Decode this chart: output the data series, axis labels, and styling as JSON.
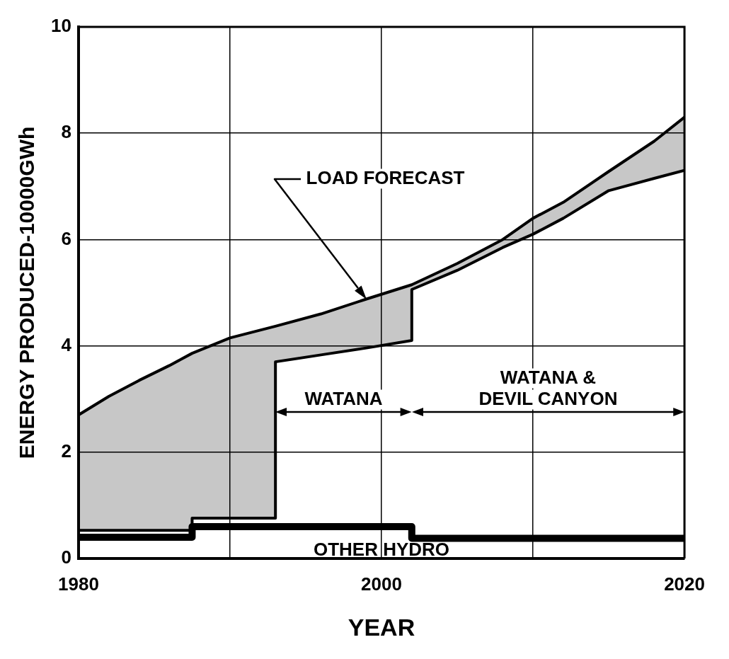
{
  "chart_data": {
    "type": "line",
    "xlabel": "YEAR",
    "ylabel": "ENERGY PRODUCED-10000GWh",
    "xlim": [
      1980,
      2020
    ],
    "xticks": [
      1980,
      {
        "value": 1990,
        "label": null
      },
      2000,
      {
        "value": 2010,
        "label": null
      },
      2020
    ],
    "ylim": [
      0,
      10
    ],
    "yticks": [
      0,
      2,
      4,
      6,
      8,
      10
    ],
    "grid": true,
    "legend": false,
    "marker": "none",
    "line_style": "solid",
    "series": [
      {
        "color": "#000000",
        "x": [
          1980,
          1982,
          1984,
          1986,
          1987.5,
          1987.5,
          1990,
          1993,
          1993,
          1996,
          1999,
          2002,
          2002,
          2005,
          2008,
          2010,
          2012,
          2015,
          2018,
          2020
        ],
        "values": [
          2.7,
          3.05,
          3.35,
          3.63,
          3.86,
          3.86,
          4.15,
          4.37,
          4.37,
          4.6,
          4.88,
          5.15,
          5.15,
          5.55,
          6.0,
          6.4,
          6.7,
          7.28,
          7.85,
          8.3
        ],
        "lower": [
          0.53,
          0.53,
          0.53,
          0.53,
          0.53,
          0.76,
          0.76,
          0.76,
          3.7,
          3.83,
          3.96,
          4.1,
          5.06,
          5.42,
          5.85,
          6.1,
          6.4,
          6.92,
          7.15,
          7.3
        ],
        "upper": [
          2.7,
          3.05,
          3.35,
          3.63,
          3.86,
          3.86,
          4.15,
          4.37,
          4.37,
          4.6,
          4.88,
          5.15,
          5.15,
          5.55,
          6.0,
          6.4,
          6.7,
          7.28,
          7.85,
          8.3
        ]
      },
      {
        "color": "#000000",
        "x": [
          1980,
          1982,
          1984,
          1986,
          1987.5,
          1987.5,
          1990,
          1993,
          1993,
          1996,
          1999,
          2002,
          2002,
          2005,
          2008,
          2010,
          2012,
          2015,
          2018,
          2020
        ],
        "values": [
          0.53,
          0.53,
          0.53,
          0.53,
          0.53,
          0.76,
          0.76,
          0.76,
          3.7,
          3.83,
          3.96,
          4.1,
          5.06,
          5.42,
          5.85,
          6.1,
          6.4,
          6.92,
          7.15,
          7.3
        ]
      },
      {
        "name": "OTHER HYDRO",
        "color": "#000000",
        "x": [
          1980,
          1987.5,
          1987.5,
          2002,
          2002,
          2020
        ],
        "values": [
          0.4,
          0.4,
          0.6,
          0.6,
          0.38,
          0.38
        ]
      }
    ],
    "annotations": [
      "LOAD FORECAST",
      "WATANA",
      "WATANA &\nDEVIL CANYON"
    ]
  }
}
